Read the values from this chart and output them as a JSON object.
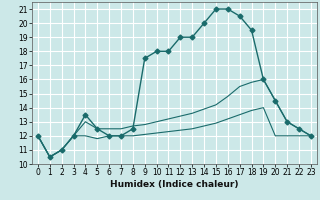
{
  "xlabel": "Humidex (Indice chaleur)",
  "bg_color": "#cce8e8",
  "grid_color": "#ffffff",
  "line_color": "#1a6b6b",
  "xlim": [
    -0.5,
    23.5
  ],
  "ylim": [
    10,
    21.5
  ],
  "yticks": [
    10,
    11,
    12,
    13,
    14,
    15,
    16,
    17,
    18,
    19,
    20,
    21
  ],
  "xticks": [
    0,
    1,
    2,
    3,
    4,
    5,
    6,
    7,
    8,
    9,
    10,
    11,
    12,
    13,
    14,
    15,
    16,
    17,
    18,
    19,
    20,
    21,
    22,
    23
  ],
  "series1_x": [
    0,
    1,
    2,
    3,
    4,
    5,
    6,
    7,
    8,
    9,
    10,
    11,
    12,
    13,
    14,
    15,
    16,
    17,
    18,
    19,
    20,
    21,
    22,
    23
  ],
  "series1_y": [
    12.0,
    10.5,
    11.0,
    12.0,
    13.5,
    12.5,
    12.0,
    12.0,
    12.5,
    17.5,
    18.0,
    18.0,
    19.0,
    19.0,
    20.0,
    21.0,
    21.0,
    20.5,
    19.5,
    16.0,
    14.5,
    13.0,
    12.5,
    12.0
  ],
  "series2_x": [
    0,
    1,
    2,
    3,
    4,
    5,
    6,
    7,
    8,
    9,
    10,
    11,
    12,
    13,
    14,
    15,
    16,
    17,
    18,
    19,
    20,
    21,
    22,
    23
  ],
  "series2_y": [
    12.0,
    10.5,
    11.0,
    12.0,
    12.0,
    11.8,
    12.0,
    12.0,
    12.0,
    12.1,
    12.2,
    12.3,
    12.4,
    12.5,
    12.7,
    12.9,
    13.2,
    13.5,
    13.8,
    14.0,
    12.0,
    12.0,
    12.0,
    12.0
  ],
  "series3_x": [
    0,
    1,
    2,
    3,
    4,
    5,
    6,
    7,
    8,
    9,
    10,
    11,
    12,
    13,
    14,
    15,
    16,
    17,
    18,
    19,
    20,
    21,
    22,
    23
  ],
  "series3_y": [
    12.0,
    10.5,
    11.0,
    12.0,
    13.0,
    12.5,
    12.5,
    12.5,
    12.7,
    12.8,
    13.0,
    13.2,
    13.4,
    13.6,
    13.9,
    14.2,
    14.8,
    15.5,
    15.8,
    16.0,
    14.5,
    13.0,
    12.5,
    12.0
  ]
}
